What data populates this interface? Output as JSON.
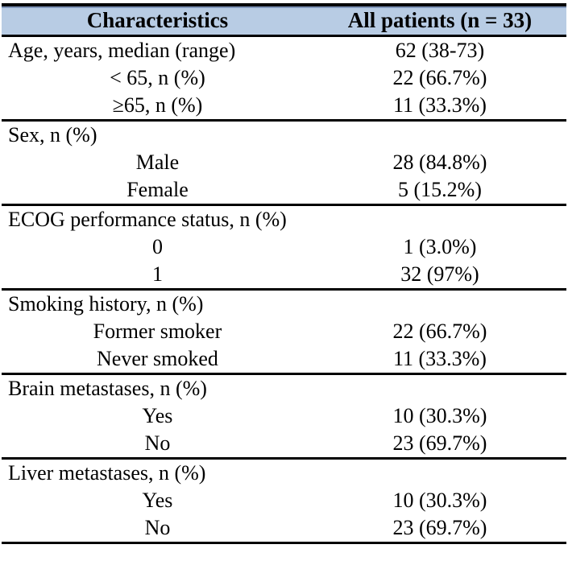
{
  "table": {
    "title_semantic": "Patient baseline characteristics",
    "colors": {
      "header_background": "#b8cce4",
      "header_top_edge": "#8096ba",
      "rule": "#000000",
      "text": "#000000"
    },
    "header": {
      "characteristics": "Characteristics",
      "all_patients": "All patients (n = 33)"
    },
    "sections": [
      {
        "rows": [
          {
            "label": "Age, years, median (range)",
            "value": "62 (38-73)"
          },
          {
            "label": "< 65, n (%)",
            "value": "22 (66.7%)"
          },
          {
            "label": "≥65, n (%)",
            "value": "11 (33.3%)"
          }
        ]
      },
      {
        "rows": [
          {
            "label": "Sex, n (%)",
            "value": ""
          },
          {
            "label": "Male",
            "value": "28 (84.8%)"
          },
          {
            "label": "Female",
            "value": "5 (15.2%)"
          }
        ]
      },
      {
        "rows": [
          {
            "label": "ECOG performance status, n (%)",
            "value": ""
          },
          {
            "label": "0",
            "value": "1 (3.0%)"
          },
          {
            "label": "1",
            "value": "32 (97%)"
          }
        ]
      },
      {
        "rows": [
          {
            "label": "Smoking history, n (%)",
            "value": ""
          },
          {
            "label": "Former smoker",
            "value": "22 (66.7%)"
          },
          {
            "label": "Never smoked",
            "value": "11 (33.3%)"
          }
        ]
      },
      {
        "rows": [
          {
            "label": "Brain metastases, n (%)",
            "value": ""
          },
          {
            "label": "Yes",
            "value": "10 (30.3%)"
          },
          {
            "label": "No",
            "value": "23 (69.7%)"
          }
        ]
      },
      {
        "rows": [
          {
            "label": "Liver metastases, n (%)",
            "value": ""
          },
          {
            "label": "Yes",
            "value": "10 (30.3%)"
          },
          {
            "label": "No",
            "value": "23 (69.7%)"
          }
        ]
      }
    ]
  }
}
